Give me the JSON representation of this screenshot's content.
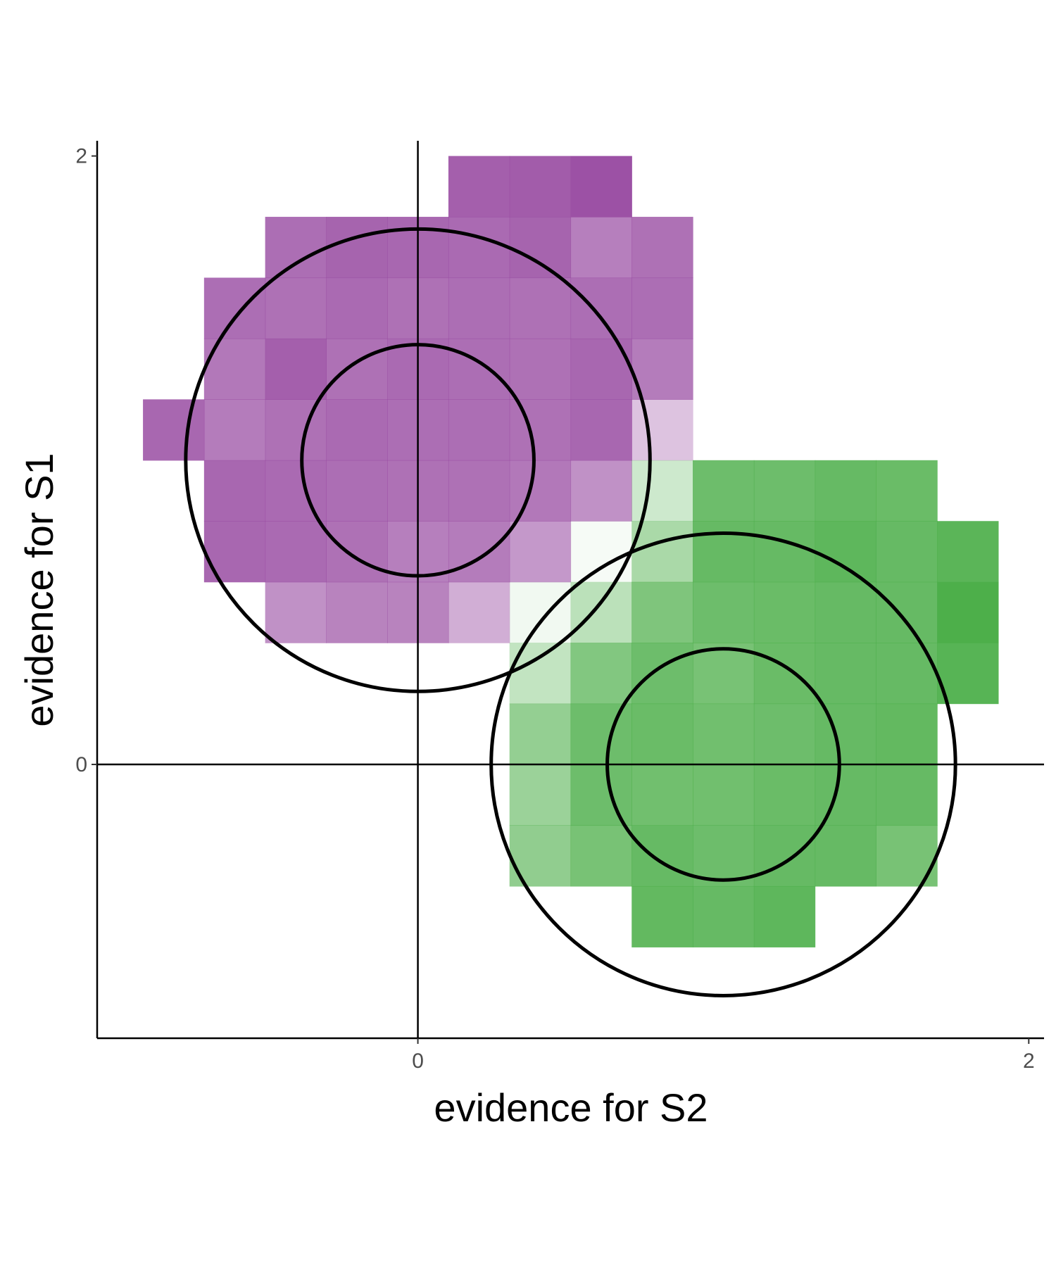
{
  "chart_data": {
    "type": "heatmap",
    "title": "",
    "xlabel": "evidence for S2",
    "ylabel": "evidence for S1",
    "xlim": [
      -1.05,
      2.05
    ],
    "ylim": [
      -0.9,
      2.05
    ],
    "x_ticks": [
      0,
      2
    ],
    "y_ticks": [
      0,
      2
    ],
    "x_tick_labels": [
      "0",
      "2"
    ],
    "y_tick_labels": [
      "0",
      "2"
    ],
    "grid": false,
    "legend": "none",
    "reference_lines": {
      "x": 0,
      "y": 0
    },
    "cell_size": 0.2,
    "colors": {
      "S1": "#9a4ea3",
      "S2": "#4daf4a",
      "line": "#000000"
    },
    "series": [
      {
        "color_key": "S1",
        "cells": [
          [
            0.2,
            1.9,
            0.9
          ],
          [
            0.4,
            1.9,
            0.92
          ],
          [
            0.6,
            1.9,
            0.98
          ],
          [
            -0.4,
            1.7,
            0.82
          ],
          [
            -0.2,
            1.7,
            0.88
          ],
          [
            0.0,
            1.7,
            0.86
          ],
          [
            0.2,
            1.7,
            0.84
          ],
          [
            0.4,
            1.7,
            0.88
          ],
          [
            0.6,
            1.7,
            0.72
          ],
          [
            0.8,
            1.7,
            0.8
          ],
          [
            -0.6,
            1.5,
            0.82
          ],
          [
            -0.4,
            1.5,
            0.8
          ],
          [
            -0.2,
            1.5,
            0.84
          ],
          [
            0.0,
            1.5,
            0.8
          ],
          [
            0.2,
            1.5,
            0.82
          ],
          [
            0.4,
            1.5,
            0.8
          ],
          [
            0.6,
            1.5,
            0.82
          ],
          [
            0.8,
            1.5,
            0.82
          ],
          [
            -0.6,
            1.3,
            0.76
          ],
          [
            -0.4,
            1.3,
            0.9
          ],
          [
            -0.2,
            1.3,
            0.8
          ],
          [
            0.0,
            1.3,
            0.84
          ],
          [
            0.2,
            1.3,
            0.82
          ],
          [
            0.4,
            1.3,
            0.8
          ],
          [
            0.6,
            1.3,
            0.86
          ],
          [
            0.8,
            1.3,
            0.74
          ],
          [
            -0.8,
            1.1,
            0.86
          ],
          [
            -0.6,
            1.1,
            0.74
          ],
          [
            -0.4,
            1.1,
            0.8
          ],
          [
            -0.2,
            1.1,
            0.84
          ],
          [
            0.0,
            1.1,
            0.82
          ],
          [
            0.2,
            1.1,
            0.82
          ],
          [
            0.4,
            1.1,
            0.8
          ],
          [
            0.6,
            1.1,
            0.86
          ],
          [
            0.8,
            1.1,
            0.34
          ],
          [
            -0.6,
            0.9,
            0.86
          ],
          [
            -0.4,
            0.9,
            0.84
          ],
          [
            -0.2,
            0.9,
            0.82
          ],
          [
            0.0,
            0.9,
            0.8
          ],
          [
            0.2,
            0.9,
            0.8
          ],
          [
            0.4,
            0.9,
            0.76
          ],
          [
            0.6,
            0.9,
            0.62
          ],
          [
            -0.6,
            0.7,
            0.86
          ],
          [
            -0.4,
            0.7,
            0.84
          ],
          [
            -0.2,
            0.7,
            0.8
          ],
          [
            0.0,
            0.7,
            0.72
          ],
          [
            0.2,
            0.7,
            0.74
          ],
          [
            0.4,
            0.7,
            0.58
          ],
          [
            -0.4,
            0.5,
            0.62
          ],
          [
            -0.2,
            0.5,
            0.7
          ],
          [
            0.0,
            0.5,
            0.7
          ],
          [
            0.2,
            0.5,
            0.46
          ]
        ]
      },
      {
        "color_key": "S2",
        "cells": [
          [
            0.8,
            0.9,
            0.28
          ],
          [
            1.0,
            0.9,
            0.82
          ],
          [
            1.2,
            0.9,
            0.82
          ],
          [
            1.4,
            0.9,
            0.86
          ],
          [
            1.6,
            0.9,
            0.84
          ],
          [
            0.6,
            0.7,
            0.05
          ],
          [
            0.8,
            0.7,
            0.48
          ],
          [
            1.0,
            0.7,
            0.86
          ],
          [
            1.2,
            0.7,
            0.86
          ],
          [
            1.4,
            0.7,
            0.9
          ],
          [
            1.6,
            0.7,
            0.86
          ],
          [
            1.8,
            0.7,
            0.92
          ],
          [
            0.4,
            0.5,
            0.08
          ],
          [
            0.6,
            0.5,
            0.38
          ],
          [
            0.8,
            0.5,
            0.72
          ],
          [
            1.0,
            0.5,
            0.82
          ],
          [
            1.2,
            0.5,
            0.84
          ],
          [
            1.4,
            0.5,
            0.86
          ],
          [
            1.6,
            0.5,
            0.86
          ],
          [
            1.8,
            0.5,
            1.0
          ],
          [
            0.4,
            0.3,
            0.34
          ],
          [
            0.6,
            0.3,
            0.7
          ],
          [
            0.8,
            0.3,
            0.82
          ],
          [
            1.0,
            0.3,
            0.76
          ],
          [
            1.2,
            0.3,
            0.84
          ],
          [
            1.4,
            0.3,
            0.86
          ],
          [
            1.6,
            0.3,
            0.86
          ],
          [
            1.8,
            0.3,
            0.94
          ],
          [
            0.4,
            0.1,
            0.6
          ],
          [
            0.6,
            0.1,
            0.82
          ],
          [
            0.8,
            0.1,
            0.84
          ],
          [
            1.0,
            0.1,
            0.8
          ],
          [
            1.2,
            0.1,
            0.82
          ],
          [
            1.4,
            0.1,
            0.86
          ],
          [
            1.6,
            0.1,
            0.88
          ],
          [
            0.4,
            -0.1,
            0.56
          ],
          [
            0.6,
            -0.1,
            0.82
          ],
          [
            0.8,
            -0.1,
            0.8
          ],
          [
            1.0,
            -0.1,
            0.8
          ],
          [
            1.2,
            -0.1,
            0.84
          ],
          [
            1.4,
            -0.1,
            0.86
          ],
          [
            1.6,
            -0.1,
            0.86
          ],
          [
            0.4,
            -0.3,
            0.62
          ],
          [
            0.6,
            -0.3,
            0.76
          ],
          [
            0.8,
            -0.3,
            0.86
          ],
          [
            1.0,
            -0.3,
            0.82
          ],
          [
            1.2,
            -0.3,
            0.86
          ],
          [
            1.4,
            -0.3,
            0.86
          ],
          [
            1.6,
            -0.3,
            0.76
          ],
          [
            0.8,
            -0.5,
            0.88
          ],
          [
            1.0,
            -0.5,
            0.86
          ],
          [
            1.2,
            -0.5,
            0.9
          ]
        ]
      }
    ],
    "circles": [
      {
        "cx": 0,
        "cy": 1,
        "r": 0.38
      },
      {
        "cx": 0,
        "cy": 1,
        "r": 0.76
      },
      {
        "cx": 1,
        "cy": 0,
        "r": 0.38
      },
      {
        "cx": 1,
        "cy": 0,
        "r": 0.76
      }
    ]
  }
}
